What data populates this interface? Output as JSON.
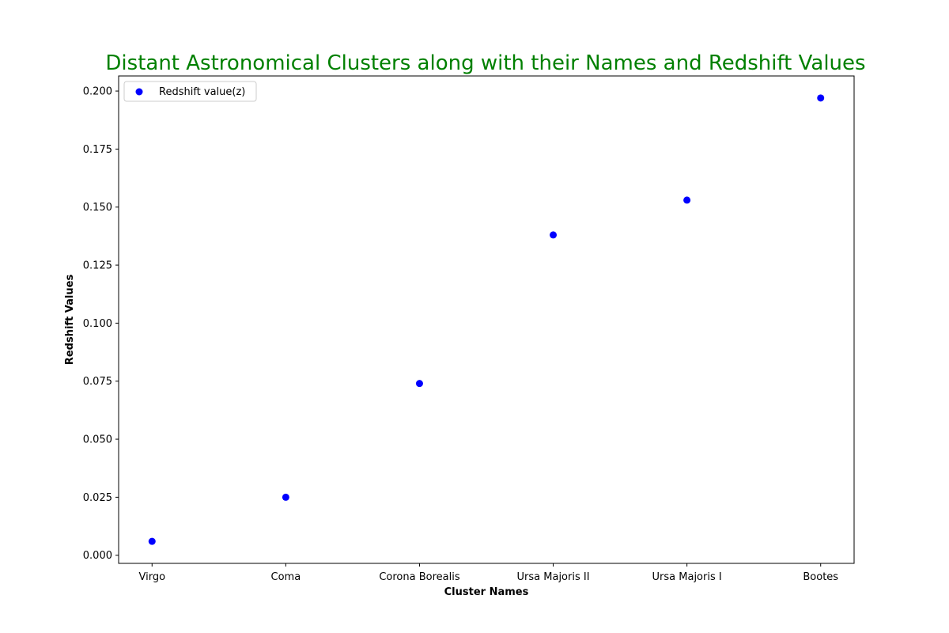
{
  "chart_data": {
    "type": "scatter",
    "title": "Distant Astronomical Clusters along with their Names and Redshift Values",
    "title_color": "#008000",
    "xlabel": "Cluster Names",
    "ylabel": "Redshift Values",
    "categories": [
      "Virgo",
      "Coma",
      "Corona Borealis",
      "Ursa Majoris II",
      "Ursa Majoris I",
      "Bootes"
    ],
    "series": [
      {
        "name": "Redshift value(z)",
        "color": "#0000ff",
        "values": [
          0.006,
          0.025,
          0.074,
          0.138,
          0.153,
          0.197
        ]
      }
    ],
    "yticks": [
      "0.000",
      "0.025",
      "0.050",
      "0.075",
      "0.100",
      "0.125",
      "0.150",
      "0.175",
      "0.200"
    ],
    "ylim": [
      -0.0035,
      0.2065
    ],
    "grid": false,
    "legend_position": "upper-left"
  }
}
